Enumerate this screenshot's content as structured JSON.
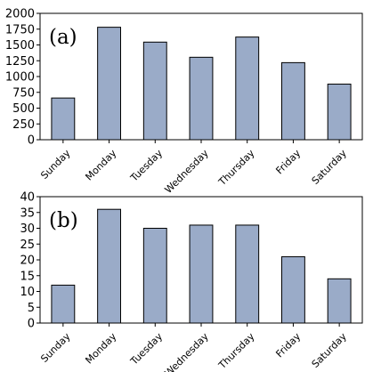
{
  "style": {
    "bar_fill": "#9aabc8",
    "bar_stroke": "#000000",
    "axis_color": "#000000"
  },
  "chart_data": [
    {
      "type": "bar",
      "panel_label": "(a)",
      "categories": [
        "Sunday",
        "Monday",
        "Tuesday",
        "Wednesday",
        "Thursday",
        "Friday",
        "Saturday"
      ],
      "values": [
        660,
        1780,
        1545,
        1305,
        1625,
        1220,
        880
      ],
      "yticks": [
        0,
        250,
        500,
        750,
        1000,
        1250,
        1500,
        1750,
        2000
      ],
      "ylim": [
        0,
        2000
      ],
      "xlabel": "",
      "ylabel": "",
      "grid": false,
      "legend": "none"
    },
    {
      "type": "bar",
      "panel_label": "(b)",
      "categories": [
        "Sunday",
        "Monday",
        "Tuesday",
        "Wednesday",
        "Thursday",
        "Friday",
        "Saturday"
      ],
      "values": [
        12,
        36,
        30,
        31,
        31,
        21,
        14
      ],
      "yticks": [
        0,
        5,
        10,
        15,
        20,
        25,
        30,
        35,
        40
      ],
      "ylim": [
        0,
        40
      ],
      "xlabel": "",
      "ylabel": "",
      "grid": false,
      "legend": "none"
    }
  ]
}
